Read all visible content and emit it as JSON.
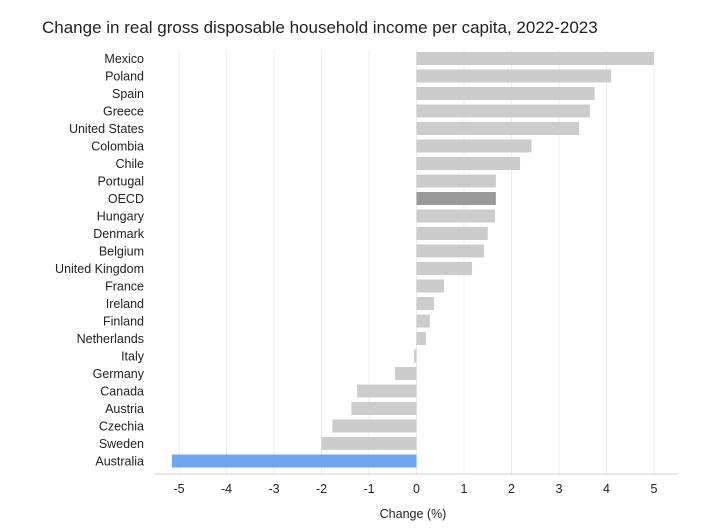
{
  "chart_data": {
    "type": "bar",
    "orientation": "horizontal",
    "title": "Change in real gross disposable household income per capita, 2022-2023",
    "xlabel": "Change (%)",
    "ylabel": "",
    "xlim": [
      -5.5,
      5.5
    ],
    "xticks": [
      -5,
      -4,
      -3,
      -2,
      -1,
      0,
      1,
      2,
      3,
      4,
      5
    ],
    "grid": "vertical",
    "categories": [
      "Mexico",
      "Poland",
      "Spain",
      "Greece",
      "United States",
      "Colombia",
      "Chile",
      "Portugal",
      "OECD",
      "Hungary",
      "Denmark",
      "Belgium",
      "United Kingdom",
      "France",
      "Ireland",
      "Finland",
      "Netherlands",
      "Italy",
      "Germany",
      "Canada",
      "Austria",
      "Czechia",
      "Sweden",
      "Australia"
    ],
    "values": [
      5.0,
      4.1,
      3.75,
      3.65,
      3.42,
      2.42,
      2.18,
      1.67,
      1.67,
      1.65,
      1.5,
      1.42,
      1.17,
      0.58,
      0.37,
      0.28,
      0.2,
      -0.05,
      -0.45,
      -1.25,
      -1.37,
      -1.77,
      -2.0,
      -5.15
    ],
    "colors": {
      "default": "#cccccc",
      "OECD": "#999999",
      "Australia": "#6ea6f0"
    }
  }
}
